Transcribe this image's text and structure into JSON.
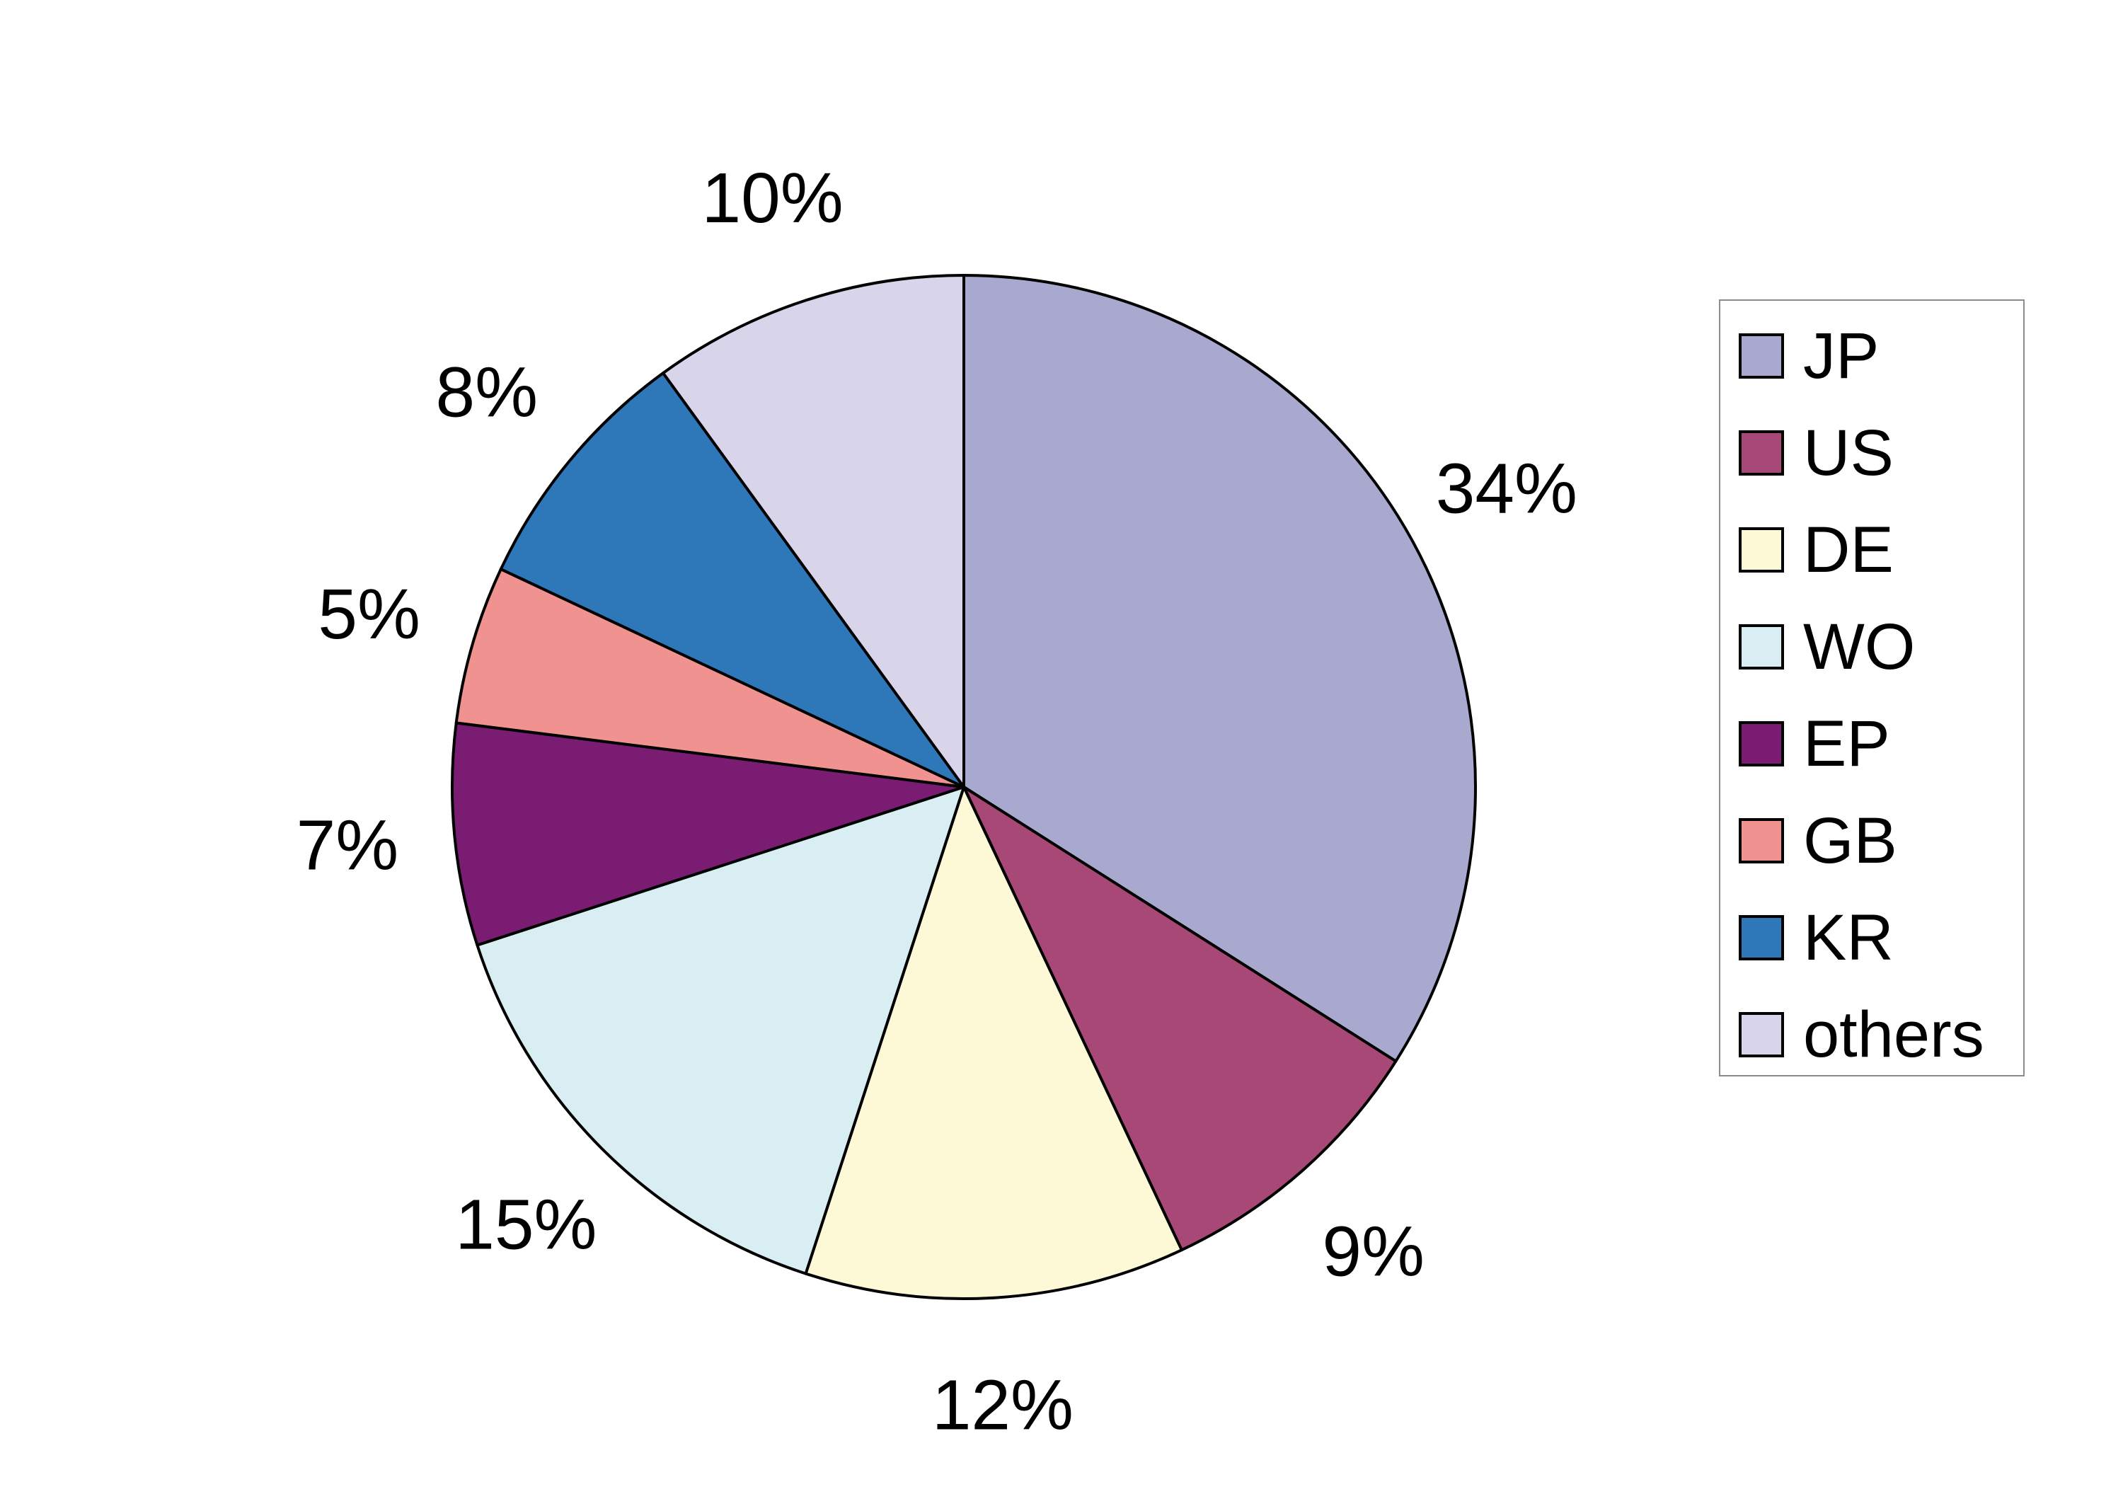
{
  "chart_data": {
    "type": "pie",
    "title": "",
    "slices": [
      {
        "name": "JP",
        "value": 34,
        "label": "34%",
        "color": "#a9a9d0"
      },
      {
        "name": "US",
        "value": 9,
        "label": "9%",
        "color": "#a84877"
      },
      {
        "name": "DE",
        "value": 12,
        "label": "12%",
        "color": "#fdf9d6"
      },
      {
        "name": "WO",
        "value": 15,
        "label": "15%",
        "color": "#d9eef3"
      },
      {
        "name": "EP",
        "value": 7,
        "label": "7%",
        "color": "#7a1c72"
      },
      {
        "name": "GB",
        "value": 5,
        "label": "5%",
        "color": "#f09390"
      },
      {
        "name": "KR",
        "value": 8,
        "label": "8%",
        "color": "#2e77b8"
      },
      {
        "name": "others",
        "value": 10,
        "label": "10%",
        "color": "#d8d5ea"
      }
    ],
    "start_angle": "12 o'clock",
    "direction": "clockwise",
    "legend": {
      "placement": "right"
    }
  }
}
